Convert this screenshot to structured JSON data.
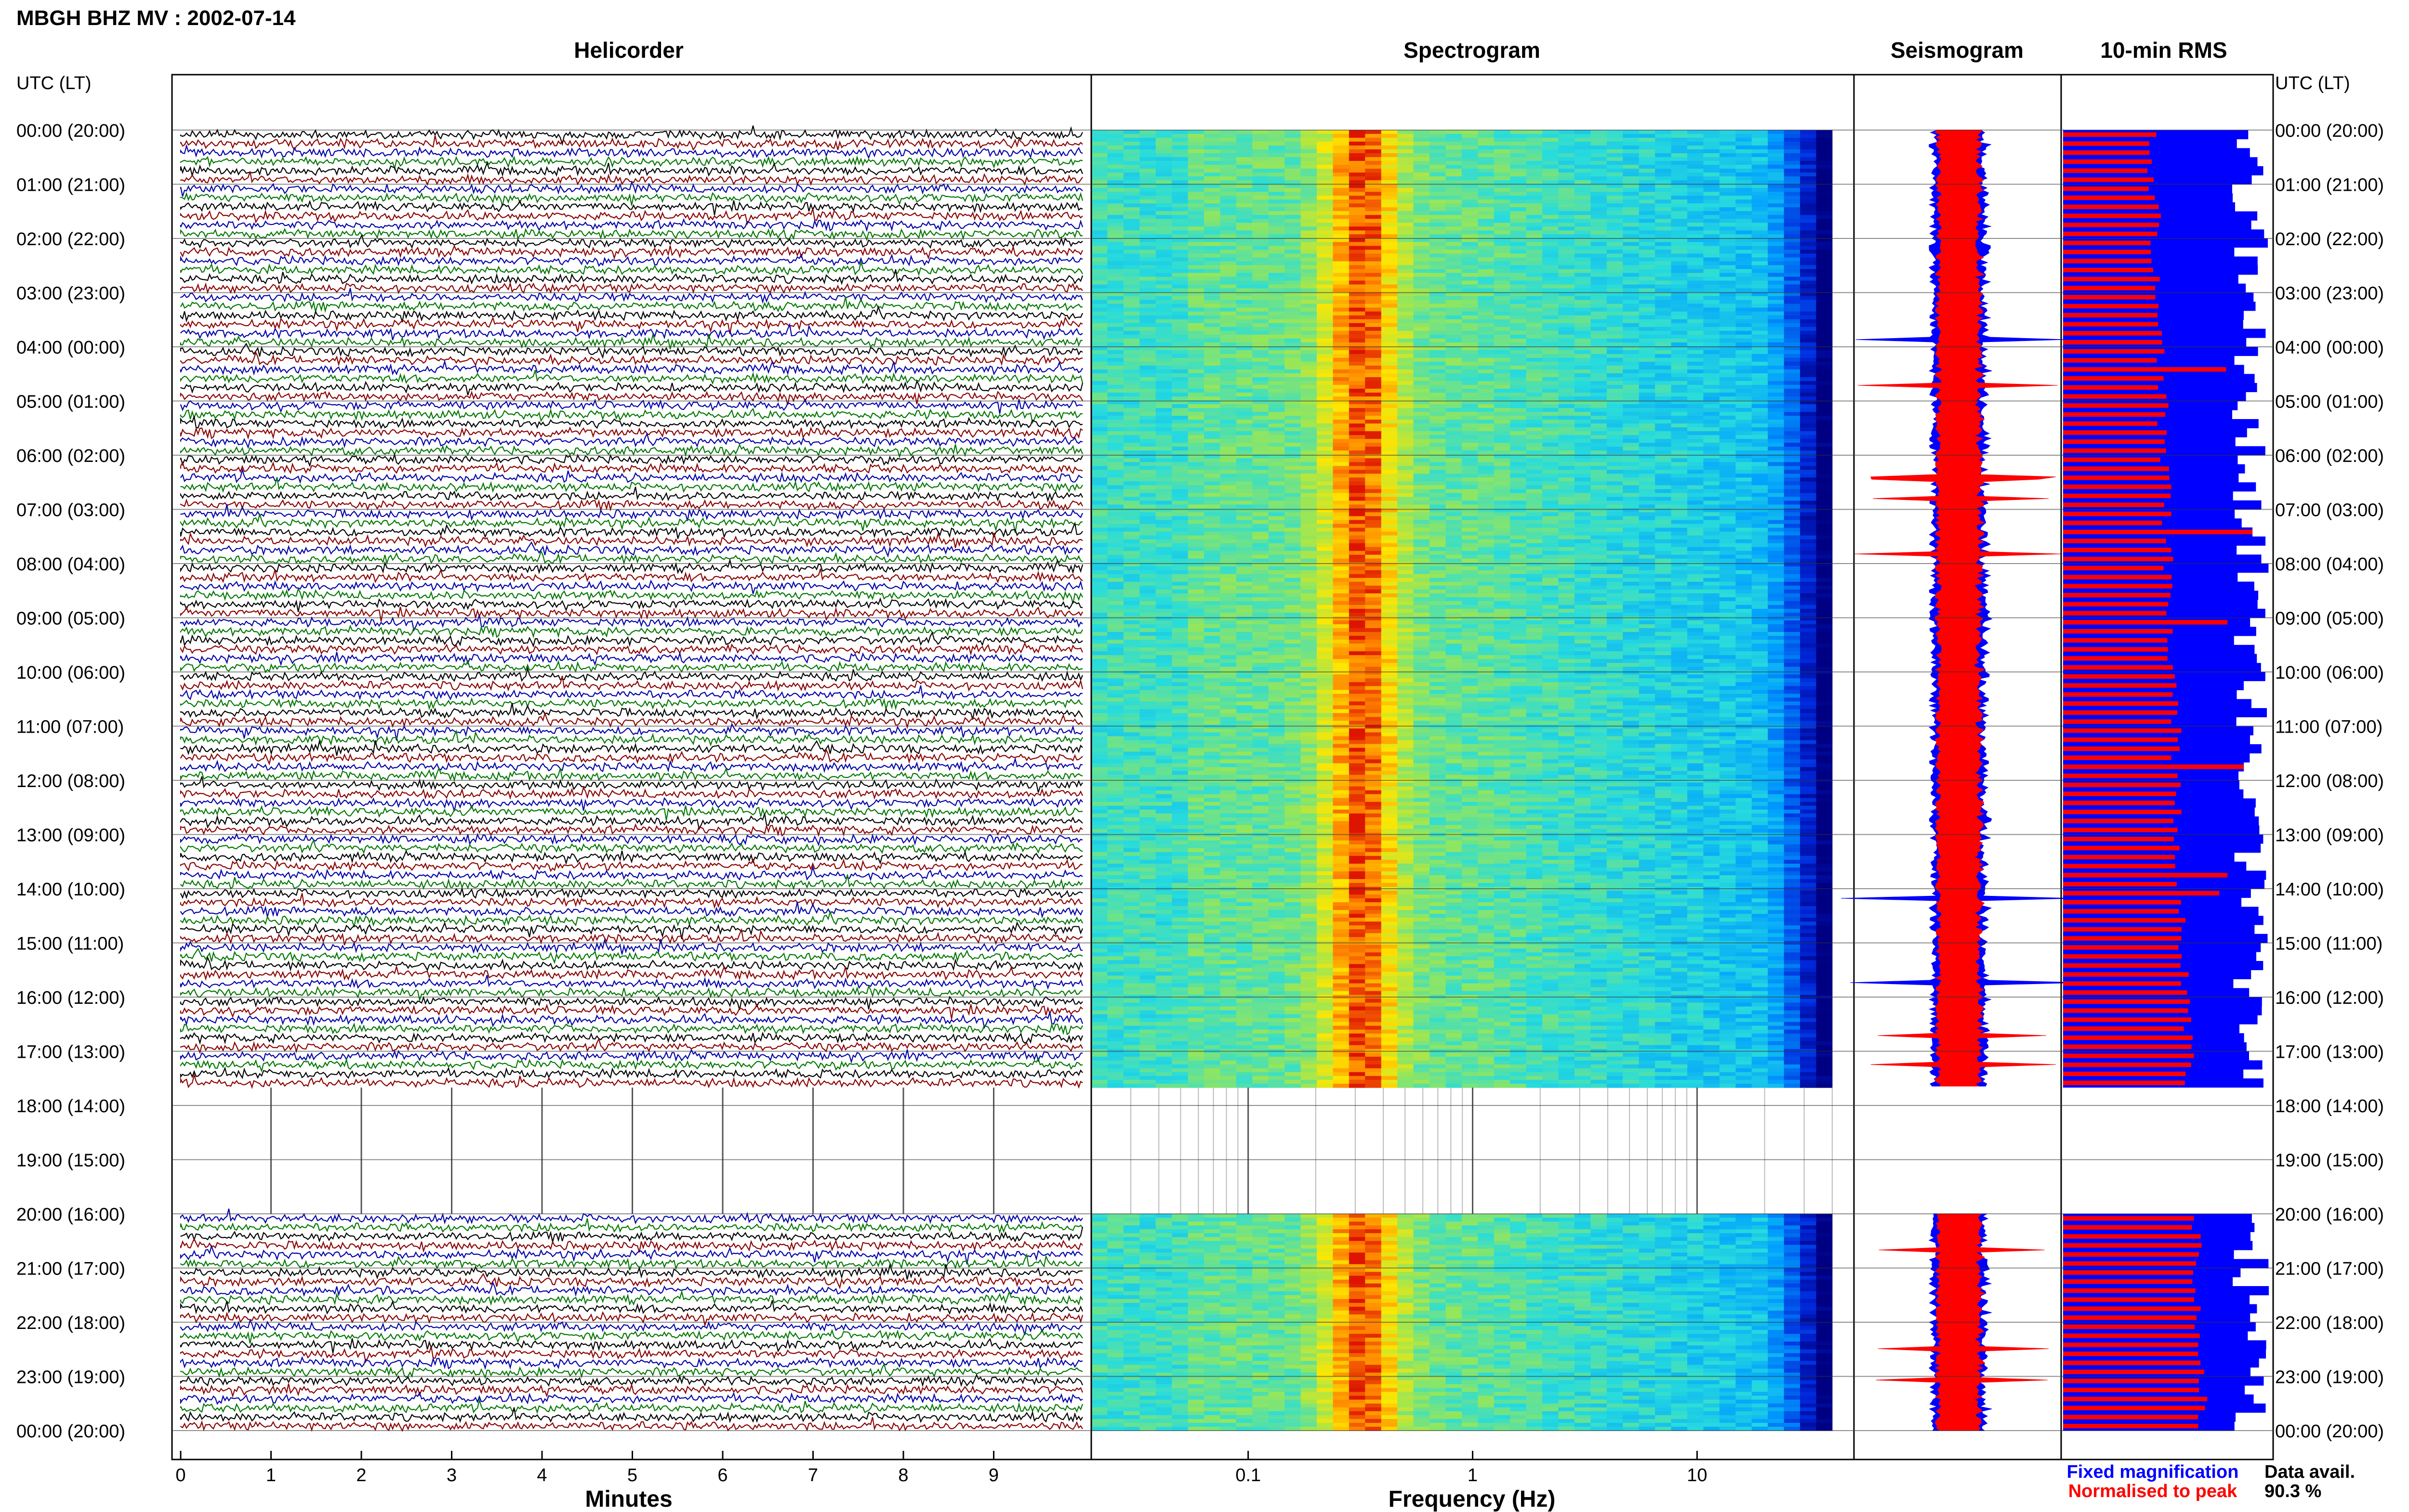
{
  "header": {
    "title": "MBGH BHZ MV : 2002-07-14"
  },
  "colors": {
    "trace_cycle": [
      "#000000",
      "#8b0000",
      "#0000aa",
      "#007700"
    ],
    "fixed": "#0000ff",
    "normalised": "#ff0000",
    "gap": "#ffffff"
  },
  "time_axis": {
    "left_label": "UTC (LT)",
    "right_label": "UTC (LT)",
    "ticks": [
      "00:00 (20:00)",
      "01:00 (21:00)",
      "02:00 (22:00)",
      "03:00 (23:00)",
      "04:00 (00:00)",
      "05:00 (01:00)",
      "06:00 (02:00)",
      "07:00 (03:00)",
      "08:00 (04:00)",
      "09:00 (05:00)",
      "10:00 (06:00)",
      "11:00 (07:00)",
      "12:00 (08:00)",
      "13:00 (09:00)",
      "14:00 (10:00)",
      "15:00 (11:00)",
      "16:00 (12:00)",
      "17:00 (13:00)",
      "18:00 (14:00)",
      "19:00 (15:00)",
      "20:00 (16:00)",
      "21:00 (17:00)",
      "22:00 (18:00)",
      "23:00 (19:00)",
      "00:00 (20:00)"
    ]
  },
  "chart_data": [
    {
      "type": "line",
      "title": "Helicorder",
      "xlabel": "Minutes",
      "x_ticks": [
        0,
        1,
        2,
        3,
        4,
        5,
        6,
        7,
        8,
        9
      ],
      "xlim": [
        0,
        10
      ],
      "ylim_hours": [
        0,
        24
      ],
      "data_hours": [
        [
          0,
          17.67
        ],
        [
          20,
          24
        ]
      ],
      "gap_hours": [
        17.67,
        20
      ],
      "rows_per_hour": 6
    },
    {
      "type": "heatmap",
      "title": "Spectrogram",
      "xlabel": "Frequency (Hz)",
      "x_scale": "log",
      "x_tick_labels": [
        "0.1",
        "1",
        "10"
      ],
      "x_ticks": [
        0.1,
        1,
        10
      ],
      "xlim": [
        0.02,
        50
      ],
      "data_hours": [
        [
          0,
          17.67
        ],
        [
          20,
          24
        ]
      ],
      "gap_hours": [
        17.67,
        20
      ]
    },
    {
      "type": "line",
      "title": "Seismogram",
      "data_hours": [
        [
          0,
          17.67
        ],
        [
          20,
          24
        ]
      ]
    },
    {
      "type": "bar",
      "title": "10-min RMS",
      "legend": [
        "Fixed magnification",
        "Normalised to peak"
      ],
      "data_hours": [
        [
          0,
          17.67
        ],
        [
          20,
          24
        ]
      ],
      "bin_minutes": 10
    }
  ],
  "legend": {
    "fixed": "Fixed magnification",
    "normalised": "Normalised to peak"
  },
  "availability": {
    "label": "Data avail.",
    "value": "90.3 %"
  }
}
